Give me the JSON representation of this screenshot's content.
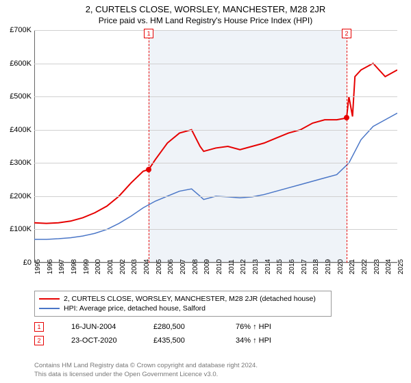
{
  "title": "2, CURTELS CLOSE, WORSLEY, MANCHESTER, M28 2JR",
  "subtitle": "Price paid vs. HM Land Registry's House Price Index (HPI)",
  "chart": {
    "type": "line",
    "ylim": [
      0,
      700000
    ],
    "ytick_step": 100000,
    "ytick_labels": [
      "£0",
      "£100K",
      "£200K",
      "£300K",
      "£400K",
      "£500K",
      "£600K",
      "£700K"
    ],
    "xlim": [
      1995,
      2025
    ],
    "xticks": [
      1995,
      1996,
      1997,
      1998,
      1999,
      2000,
      2001,
      2002,
      2003,
      2004,
      2005,
      2006,
      2007,
      2008,
      2009,
      2010,
      2011,
      2012,
      2013,
      2014,
      2015,
      2016,
      2017,
      2018,
      2019,
      2020,
      2021,
      2022,
      2023,
      2024,
      2025
    ],
    "background_color": "#ffffff",
    "shade_color": "#e8eef5",
    "shade_range": [
      2004.46,
      2020.81
    ],
    "grid_color": "#d0d0d0",
    "series": [
      {
        "name": "price_paid",
        "label": "2, CURTELS CLOSE, WORSLEY, MANCHESTER, M28 2JR (detached house)",
        "color": "#e60000",
        "line_width": 2,
        "data": [
          [
            1995.0,
            120000
          ],
          [
            1996.0,
            118000
          ],
          [
            1997.0,
            120000
          ],
          [
            1998.0,
            125000
          ],
          [
            1999.0,
            135000
          ],
          [
            2000.0,
            150000
          ],
          [
            2001.0,
            170000
          ],
          [
            2002.0,
            200000
          ],
          [
            2003.0,
            240000
          ],
          [
            2004.0,
            275000
          ],
          [
            2004.46,
            280500
          ],
          [
            2005.0,
            310000
          ],
          [
            2006.0,
            360000
          ],
          [
            2007.0,
            390000
          ],
          [
            2008.0,
            400000
          ],
          [
            2008.7,
            350000
          ],
          [
            2009.0,
            335000
          ],
          [
            2010.0,
            345000
          ],
          [
            2011.0,
            350000
          ],
          [
            2012.0,
            340000
          ],
          [
            2013.0,
            350000
          ],
          [
            2014.0,
            360000
          ],
          [
            2015.0,
            375000
          ],
          [
            2016.0,
            390000
          ],
          [
            2017.0,
            400000
          ],
          [
            2018.0,
            420000
          ],
          [
            2019.0,
            430000
          ],
          [
            2020.0,
            430000
          ],
          [
            2020.81,
            435500
          ],
          [
            2021.0,
            500000
          ],
          [
            2021.3,
            440000
          ],
          [
            2021.5,
            560000
          ],
          [
            2022.0,
            580000
          ],
          [
            2023.0,
            600000
          ],
          [
            2024.0,
            560000
          ],
          [
            2025.0,
            580000
          ]
        ]
      },
      {
        "name": "hpi",
        "label": "HPI: Average price, detached house, Salford",
        "color": "#4a76c7",
        "line_width": 1.5,
        "data": [
          [
            1995.0,
            70000
          ],
          [
            1996.0,
            70000
          ],
          [
            1997.0,
            72000
          ],
          [
            1998.0,
            75000
          ],
          [
            1999.0,
            80000
          ],
          [
            2000.0,
            88000
          ],
          [
            2001.0,
            100000
          ],
          [
            2002.0,
            118000
          ],
          [
            2003.0,
            140000
          ],
          [
            2004.0,
            165000
          ],
          [
            2005.0,
            185000
          ],
          [
            2006.0,
            200000
          ],
          [
            2007.0,
            215000
          ],
          [
            2008.0,
            222000
          ],
          [
            2008.7,
            200000
          ],
          [
            2009.0,
            190000
          ],
          [
            2010.0,
            200000
          ],
          [
            2011.0,
            198000
          ],
          [
            2012.0,
            195000
          ],
          [
            2013.0,
            198000
          ],
          [
            2014.0,
            205000
          ],
          [
            2015.0,
            215000
          ],
          [
            2016.0,
            225000
          ],
          [
            2017.0,
            235000
          ],
          [
            2018.0,
            245000
          ],
          [
            2019.0,
            255000
          ],
          [
            2020.0,
            265000
          ],
          [
            2021.0,
            300000
          ],
          [
            2022.0,
            370000
          ],
          [
            2023.0,
            410000
          ],
          [
            2024.0,
            430000
          ],
          [
            2025.0,
            450000
          ]
        ]
      }
    ],
    "markers": [
      {
        "n": "1",
        "x": 2004.46,
        "y": 280500,
        "color": "#e60000"
      },
      {
        "n": "2",
        "x": 2020.81,
        "y": 435500,
        "color": "#e60000"
      }
    ]
  },
  "legend": {
    "items": [
      {
        "color": "#e60000",
        "label": "2, CURTELS CLOSE, WORSLEY, MANCHESTER, M28 2JR (detached house)"
      },
      {
        "color": "#4a76c7",
        "label": "HPI: Average price, detached house, Salford"
      }
    ]
  },
  "annotations": [
    {
      "n": "1",
      "color": "#e60000",
      "date": "16-JUN-2004",
      "price": "£280,500",
      "pct": "76% ↑ HPI"
    },
    {
      "n": "2",
      "color": "#e60000",
      "date": "23-OCT-2020",
      "price": "£435,500",
      "pct": "34% ↑ HPI"
    }
  ],
  "footer": {
    "line1": "Contains HM Land Registry data © Crown copyright and database right 2024.",
    "line2": "This data is licensed under the Open Government Licence v3.0."
  }
}
